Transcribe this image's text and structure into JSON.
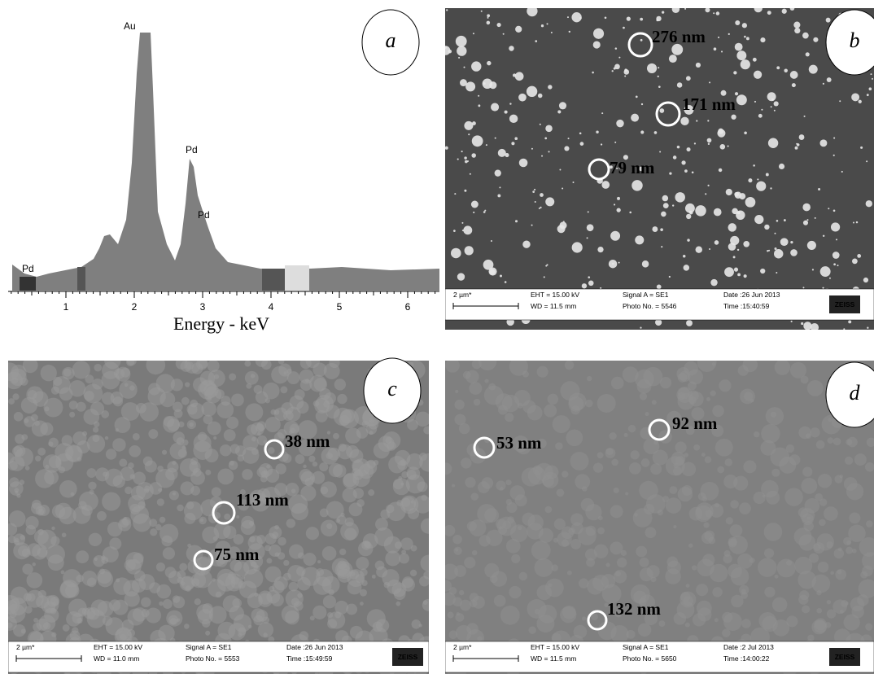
{
  "panels": [
    {
      "label": "a",
      "peaks": [
        "Au",
        "Pd",
        "Pd",
        "Pd"
      ],
      "xticks": [
        1,
        2,
        3,
        4,
        5,
        6
      ],
      "xlabel": "Energy - keV"
    },
    {
      "label": "b",
      "annotations": [
        "276 nm",
        "171 nm",
        "79 nm"
      ],
      "info": {
        "scale": "2 µm*",
        "eht": "EHT = 15.00 kV",
        "wd": "WD = 11.5 mm",
        "signal": "Signal A = SE1",
        "photo": "Photo No. = 5546",
        "date": "Date :26 Jun 2013",
        "time": "Time :15:40:59",
        "brand": "ZEISS"
      }
    },
    {
      "label": "c",
      "annotations": [
        "38 nm",
        "113 nm",
        "75 nm"
      ],
      "info": {
        "scale": "2 µm*",
        "eht": "EHT = 15.00 kV",
        "wd": "WD = 11.0 mm",
        "signal": "Signal A = SE1",
        "photo": "Photo No. = 5553",
        "date": "Date :26 Jun 2013",
        "time": "Time :15:49:59",
        "brand": "ZEISS"
      }
    },
    {
      "label": "d",
      "annotations": [
        "53 nm",
        "92 nm",
        "132 nm"
      ],
      "info": {
        "scale": "2 µm*",
        "eht": "EHT = 15.00 kV",
        "wd": "WD = 11.5 mm",
        "signal": "Signal A = SE1",
        "photo": "Photo No. = 5650",
        "date": "Date :2 Jul 2013",
        "time": "Time :14:00:22",
        "brand": "ZEISS"
      }
    }
  ]
}
